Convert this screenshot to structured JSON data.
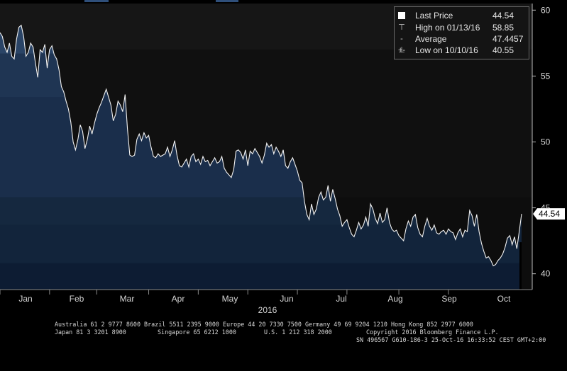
{
  "chart_data": {
    "type": "area",
    "x_labels": [
      "Jan",
      "Feb",
      "Mar",
      "Apr",
      "May",
      "Jun",
      "Jul",
      "Aug",
      "Sep",
      "Oct"
    ],
    "year_label": "2016",
    "y_ticks": [
      40,
      45,
      50,
      55,
      60
    ],
    "ylim": [
      38.8,
      60.5
    ],
    "xlim": [
      0,
      207
    ],
    "grid": false,
    "series": [
      {
        "name": "Last Price",
        "values": [
          58.3,
          58.0,
          57.2,
          56.8,
          57.5,
          56.5,
          56.3,
          57.8,
          58.7,
          58.85,
          58.0,
          56.5,
          56.8,
          57.5,
          57.2,
          56.0,
          54.9,
          57.0,
          56.8,
          57.4,
          55.6,
          57.0,
          57.3,
          56.6,
          56.3,
          55.5,
          54.2,
          53.8,
          53.1,
          52.5,
          51.5,
          50.0,
          49.4,
          50.2,
          51.3,
          50.8,
          49.5,
          50.2,
          51.2,
          50.6,
          51.4,
          52.1,
          52.6,
          53.0,
          53.5,
          54.0,
          53.4,
          52.8,
          51.6,
          52.1,
          53.1,
          52.8,
          52.3,
          53.6,
          51.0,
          49.0,
          48.9,
          49.0,
          50.2,
          50.6,
          50.1,
          50.7,
          50.3,
          50.5,
          49.6,
          48.9,
          48.8,
          49.1,
          48.9,
          49.0,
          49.1,
          49.6,
          48.9,
          49.4,
          50.1,
          49.0,
          48.2,
          48.1,
          48.4,
          48.7,
          48.1,
          48.9,
          49.1,
          48.5,
          48.7,
          48.3,
          48.9,
          48.5,
          48.6,
          48.2,
          48.5,
          48.8,
          48.4,
          48.5,
          48.9,
          48.0,
          47.7,
          47.5,
          47.3,
          47.9,
          49.3,
          49.4,
          49.2,
          48.7,
          49.4,
          48.2,
          49.3,
          49.1,
          49.5,
          49.2,
          48.9,
          48.4,
          49.0,
          49.9,
          49.6,
          49.8,
          49.1,
          49.6,
          49.3,
          48.9,
          49.4,
          48.2,
          48.0,
          48.5,
          48.8,
          48.3,
          47.8,
          47.1,
          46.9,
          45.5,
          44.5,
          44.1,
          45.3,
          44.5,
          44.9,
          45.8,
          46.2,
          45.6,
          45.8,
          46.7,
          45.5,
          46.4,
          45.7,
          44.9,
          44.4,
          43.6,
          43.9,
          44.1,
          43.5,
          43.0,
          42.8,
          43.3,
          43.9,
          43.4,
          43.7,
          44.3,
          43.6,
          45.3,
          44.9,
          44.2,
          43.8,
          44.6,
          43.9,
          44.1,
          45.0,
          43.9,
          43.4,
          43.2,
          43.3,
          42.9,
          42.7,
          42.5,
          43.4,
          44.0,
          43.6,
          44.3,
          44.5,
          43.5,
          43.0,
          42.8,
          43.6,
          44.2,
          43.6,
          43.3,
          43.7,
          43.1,
          43.0,
          43.2,
          43.3,
          43.0,
          43.4,
          43.2,
          43.1,
          42.6,
          43.1,
          43.4,
          42.8,
          43.3,
          43.2,
          44.8,
          44.4,
          43.6,
          44.5,
          43.2,
          42.3,
          41.7,
          41.2,
          41.3,
          41.0,
          40.6,
          40.7,
          41.0,
          41.2,
          41.5,
          42.0,
          42.7,
          42.9,
          42.2,
          42.8,
          41.9,
          43.2,
          44.54
        ]
      }
    ],
    "last_price_tag": "44.54",
    "highlight_low": 40.55,
    "highlight_high": 58.85
  },
  "legend": {
    "rows": [
      {
        "icon": "square",
        "label": "Last Price",
        "value": "44.54"
      },
      {
        "icon": "T",
        "label": "High on 01/13/16",
        "value": "58.85"
      },
      {
        "icon": "-+-",
        "label": "Average",
        "value": "47.4457"
      },
      {
        "icon": "⊥",
        "label": "Low on 10/10/16",
        "value": "40.55"
      }
    ]
  },
  "footer": {
    "line1": "Australia 61 2 9777 8600 Brazil 5511 2395 9000 Europe 44 20 7330 7500 Germany 49 69 9204 1210 Hong Kong 852 2977 6000",
    "line2a": "Japan 81 3 3201 8900",
    "line2b": "Singapore 65 6212 1000",
    "line2c": "U.S. 1 212 318 2000",
    "line2d": "Copyright 2016 Bloomberg Finance L.P.",
    "line3": "SN 496567 G610-186-3 25-Oct-16 16:33:52 CEST GMT+2:00"
  },
  "colors": {
    "line": "#f2f2f2",
    "fill_top": "#20354f",
    "fill_bottom": "#0e1e36",
    "background": "#000000",
    "upper_band": "#111111",
    "tag_bg": "#ffffff"
  }
}
